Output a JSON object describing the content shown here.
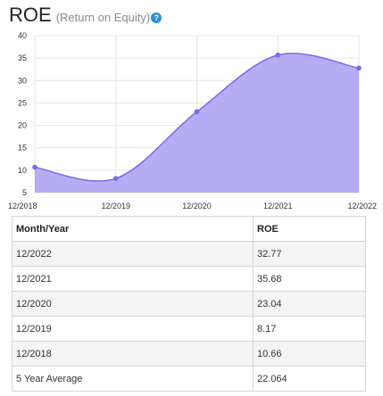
{
  "header": {
    "title": "ROE",
    "subtitle": "(Return on Equity)",
    "help_icon": "question-circle-icon"
  },
  "colors": {
    "area_fill": "#a99ef2",
    "line": "#7b68ee",
    "marker": "#7b68ee",
    "grid": "#e6e6e6",
    "help_icon": "#2f8ee0"
  },
  "chart_data": {
    "type": "area",
    "title": "",
    "xlabel": "",
    "ylabel": "",
    "x": [
      "12/2018",
      "12/2019",
      "12/2020",
      "12/2021",
      "12/2022"
    ],
    "y": [
      10.66,
      8.17,
      23.04,
      35.68,
      32.77
    ],
    "ylim": [
      5,
      40
    ],
    "yticks": [
      5,
      10,
      15,
      20,
      25,
      30,
      35,
      40
    ],
    "grid": true,
    "legend": "none"
  },
  "table": {
    "headers": [
      "Month/Year",
      "ROE"
    ],
    "rows": [
      [
        "12/2022",
        "32.77"
      ],
      [
        "12/2021",
        "35.68"
      ],
      [
        "12/2020",
        "23.04"
      ],
      [
        "12/2019",
        "8.17"
      ],
      [
        "12/2018",
        "10.66"
      ],
      [
        "5 Year Average",
        "22.064"
      ]
    ]
  }
}
